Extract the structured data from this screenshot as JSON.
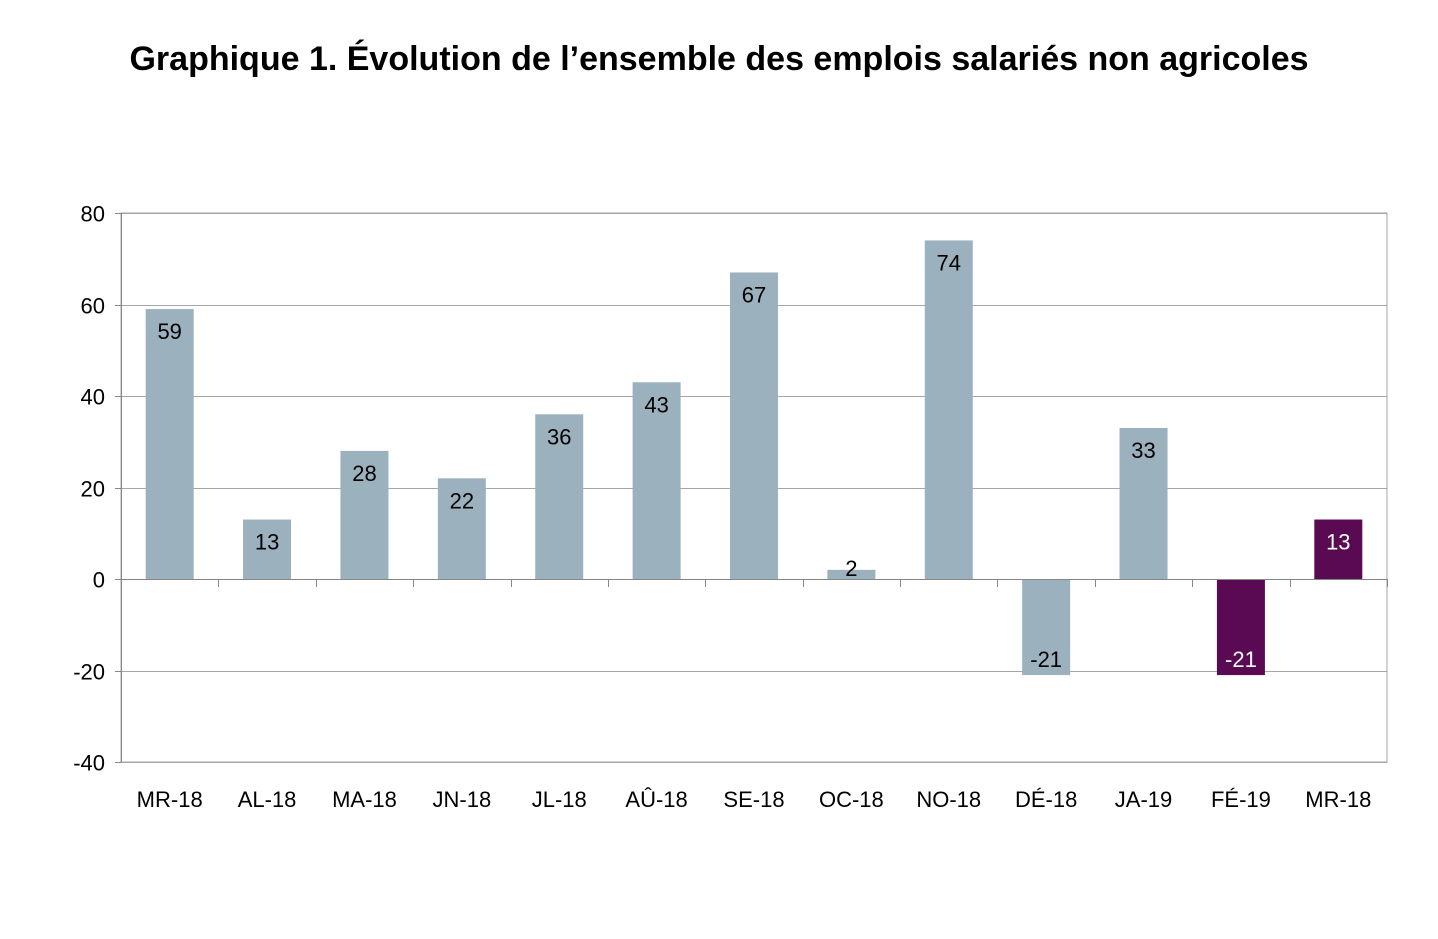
{
  "chart_data": {
    "type": "bar",
    "title": "Graphique 1. Évolution de l’ensemble des emplois salariés non agricoles",
    "xlabel": "",
    "ylabel": "",
    "ylim": [
      -40,
      80
    ],
    "yticks": [
      80,
      60,
      40,
      20,
      0,
      -20,
      -40
    ],
    "grid": true,
    "legend": "none",
    "categories": [
      "MR-18",
      "AL-18",
      "MA-18",
      "JN-18",
      "JL-18",
      "AÛ-18",
      "SE-18",
      "OC-18",
      "NO-18",
      "DÉ-18",
      "JA-19",
      "FÉ-19",
      "MR-18"
    ],
    "values": [
      59,
      13,
      28,
      22,
      36,
      43,
      67,
      2,
      74,
      -21,
      33,
      -21,
      13
    ],
    "data_labels": [
      "59",
      "13",
      "28",
      "22",
      "36",
      "43",
      "67",
      "2",
      "74",
      "-21",
      "33",
      "-21",
      "13"
    ],
    "colors": {
      "default_bar": "#9bb1be",
      "highlight_bar": "#5a0a52",
      "gridline": "#a6a6a6",
      "label_on_default": "#000000",
      "label_on_highlight": "#ffffff"
    },
    "highlighted_indices": [
      11,
      12
    ]
  }
}
